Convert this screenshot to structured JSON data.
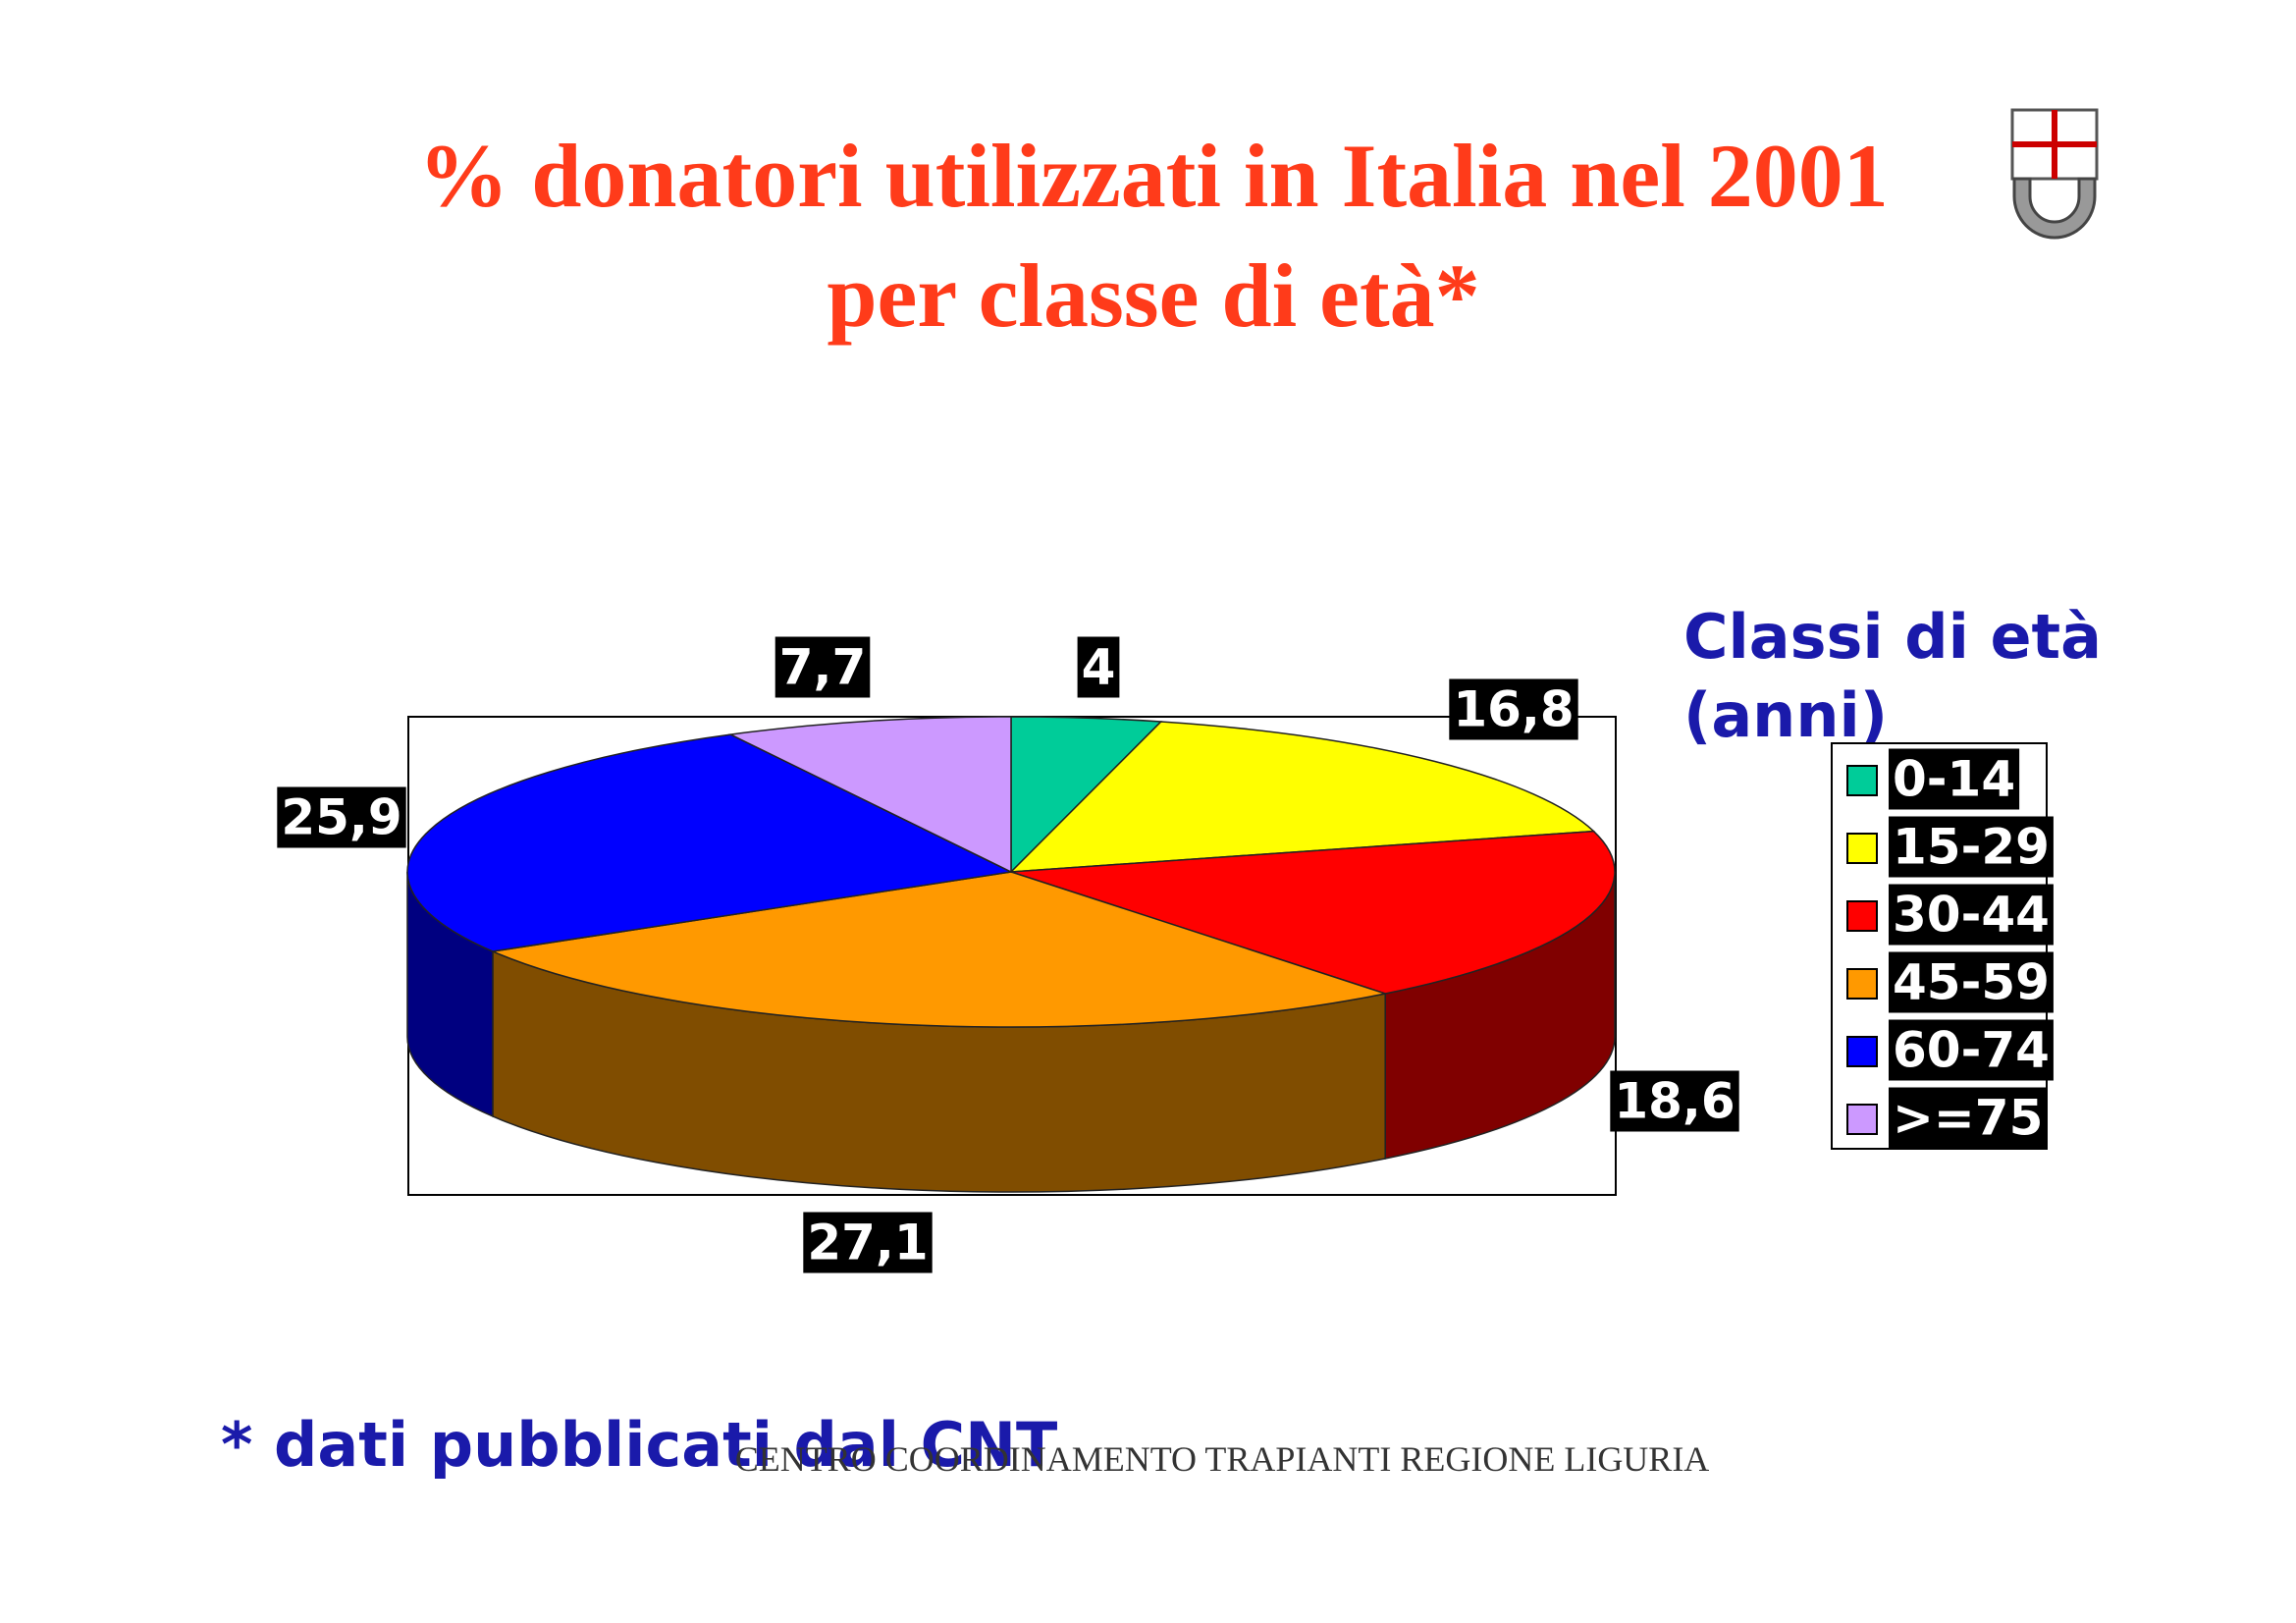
{
  "chart_data": {
    "type": "pie3d",
    "title": [
      "% donatori utilizzati in Italia nel 2001",
      "per classe di età*"
    ],
    "categories": [
      "0-14",
      "15-29",
      "30-44",
      "45-59",
      "60-74",
      ">=75"
    ],
    "values": [
      4,
      16.8,
      18.6,
      27.1,
      25.9,
      7.7
    ],
    "value_labels": [
      "4",
      "16,8",
      "18,6",
      "27,1",
      "25,9",
      "7,7"
    ],
    "colors": [
      "#00cc99",
      "#ffff00",
      "#ff0000",
      "#ff9900",
      "#0000ff",
      "#cc99ff"
    ],
    "legend_title": [
      "Classi di età",
      "(anni)"
    ],
    "footnote": "* dati pubblicati dal CNT"
  },
  "footer": "CENTRO COORDINAMENTO TRAPIANTI REGIONE LIGURIA"
}
